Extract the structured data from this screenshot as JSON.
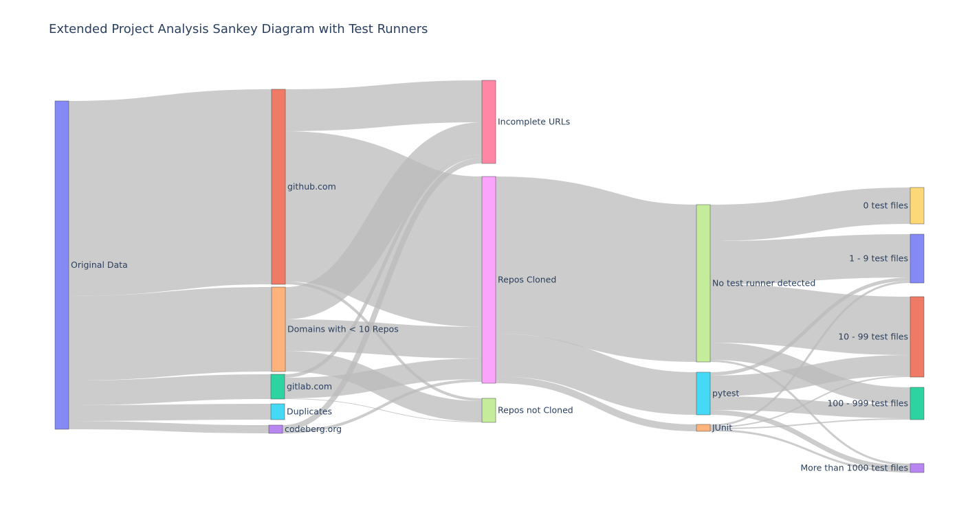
{
  "title": "Extended Project Analysis Sankey Diagram with Test Runners",
  "nodes": [
    {
      "id": "original",
      "label": "Original Data",
      "color": "#8489f6"
    },
    {
      "id": "github",
      "label": "github.com",
      "color": "#ef7a65"
    },
    {
      "id": "small_domains",
      "label": "Domains with < 10 Repos",
      "color": "#feb27c"
    },
    {
      "id": "gitlab",
      "label": "gitlab.com",
      "color": "#2ed3a2"
    },
    {
      "id": "duplicates",
      "label": "Duplicates",
      "color": "#45d9f5"
    },
    {
      "id": "codeberg",
      "label": "codeberg.org",
      "color": "#b786f0"
    },
    {
      "id": "incomplete",
      "label": "Incomplete URLs",
      "color": "#ff86a5"
    },
    {
      "id": "cloned",
      "label": "Repos Cloned",
      "color": "#fba4fb"
    },
    {
      "id": "not_cloned",
      "label": "Repos not Cloned",
      "color": "#c4ec9b"
    },
    {
      "id": "no_runner",
      "label": "No test runner detected",
      "color": "#c4ec9b"
    },
    {
      "id": "pytest",
      "label": "pytest",
      "color": "#45d9f5"
    },
    {
      "id": "junit",
      "label": "JUnit",
      "color": "#feb27c"
    },
    {
      "id": "t0",
      "label": "0 test files",
      "color": "#fdd878"
    },
    {
      "id": "t1_9",
      "label": "1 - 9 test files",
      "color": "#8489f6"
    },
    {
      "id": "t10_99",
      "label": "10 - 99 test files",
      "color": "#ef7a65"
    },
    {
      "id": "t100_999",
      "label": "100 - 999 test files",
      "color": "#2ed3a2"
    },
    {
      "id": "t1000",
      "label": "More than 1000 test files",
      "color": "#b786f0"
    }
  ],
  "links": [
    {
      "source": "original",
      "target": "github",
      "value": 284
    },
    {
      "source": "original",
      "target": "small_domains",
      "value": 123
    },
    {
      "source": "original",
      "target": "gitlab",
      "value": 36
    },
    {
      "source": "original",
      "target": "duplicates",
      "value": 23
    },
    {
      "source": "original",
      "target": "codeberg",
      "value": 12
    },
    {
      "source": "github",
      "target": "incomplete",
      "value": 61
    },
    {
      "source": "github",
      "target": "cloned",
      "value": 219
    },
    {
      "source": "github",
      "target": "not_cloned",
      "value": 4
    },
    {
      "source": "small_domains",
      "target": "incomplete",
      "value": 47
    },
    {
      "source": "small_domains",
      "target": "cloned",
      "value": 46
    },
    {
      "source": "small_domains",
      "target": "not_cloned",
      "value": 30
    },
    {
      "source": "gitlab",
      "target": "incomplete",
      "value": 5
    },
    {
      "source": "gitlab",
      "target": "cloned",
      "value": 30
    },
    {
      "source": "gitlab",
      "target": "not_cloned",
      "value": 1
    },
    {
      "source": "codeberg",
      "target": "incomplete",
      "value": 8
    },
    {
      "source": "codeberg",
      "target": "cloned",
      "value": 4
    },
    {
      "source": "cloned",
      "target": "no_runner",
      "value": 229
    },
    {
      "source": "cloned",
      "target": "pytest",
      "value": 62
    },
    {
      "source": "cloned",
      "target": "junit",
      "value": 10
    },
    {
      "source": "no_runner",
      "target": "t0",
      "value": 53
    },
    {
      "source": "no_runner",
      "target": "t1_9",
      "value": 63
    },
    {
      "source": "no_runner",
      "target": "t10_99",
      "value": 85
    },
    {
      "source": "no_runner",
      "target": "t100_999",
      "value": 25
    },
    {
      "source": "no_runner",
      "target": "t1000",
      "value": 3
    },
    {
      "source": "pytest",
      "target": "t1_9",
      "value": 5
    },
    {
      "source": "pytest",
      "target": "t10_99",
      "value": 30
    },
    {
      "source": "pytest",
      "target": "t100_999",
      "value": 20
    },
    {
      "source": "pytest",
      "target": "t1000",
      "value": 7
    },
    {
      "source": "junit",
      "target": "t1_9",
      "value": 3
    },
    {
      "source": "junit",
      "target": "t10_99",
      "value": 2
    },
    {
      "source": "junit",
      "target": "t100_999",
      "value": 2
    },
    {
      "source": "junit",
      "target": "t1000",
      "value": 3
    }
  ],
  "link_color": "#bbbbbb"
}
